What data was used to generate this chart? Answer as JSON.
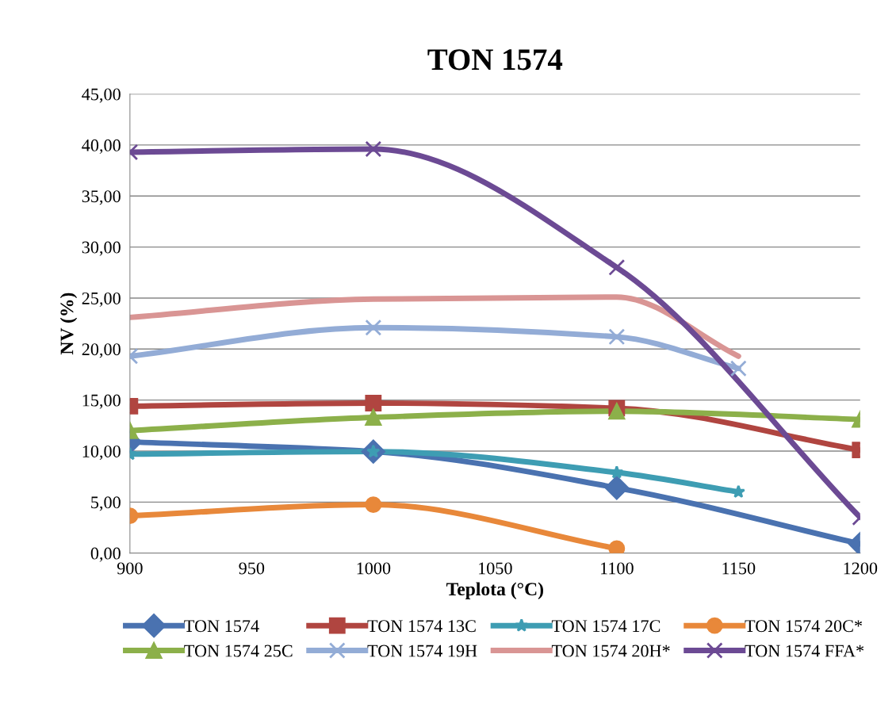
{
  "chart_data": {
    "type": "line",
    "title": "TON 1574",
    "xlabel": "Teplota (°C)",
    "ylabel": "NV (%)",
    "xlim": [
      900,
      1200
    ],
    "xticks": [
      900,
      950,
      1000,
      1050,
      1100,
      1150,
      1200
    ],
    "ylim": [
      0,
      45
    ],
    "yticks": [
      {
        "value": 0,
        "label": "0,00"
      },
      {
        "value": 5,
        "label": "5,00"
      },
      {
        "value": 10,
        "label": "10,00"
      },
      {
        "value": 15,
        "label": "15,00"
      },
      {
        "value": 20,
        "label": "20,00"
      },
      {
        "value": 25,
        "label": "25,00"
      },
      {
        "value": 30,
        "label": "30,00"
      },
      {
        "value": 35,
        "label": "35,00"
      },
      {
        "value": 40,
        "label": "40,00"
      },
      {
        "value": 45,
        "label": "45,00"
      }
    ],
    "grid": "y",
    "legend": "bottom",
    "line_style": "solid",
    "series": [
      {
        "name": "TON 1574",
        "color": "#4a72b0",
        "marker": "diamond",
        "x": [
          900,
          1000,
          1100,
          1200
        ],
        "values": [
          10.9,
          9.95,
          6.4,
          0.9
        ]
      },
      {
        "name": "TON 1574 13C",
        "color": "#b04540",
        "marker": "square",
        "x": [
          900,
          1000,
          1100,
          1200
        ],
        "values": [
          14.4,
          14.7,
          14.2,
          10.1
        ]
      },
      {
        "name": "TON 1574 17C",
        "color": "#3e9db3",
        "marker": "star",
        "x": [
          900,
          1000,
          1100,
          1150
        ],
        "values": [
          9.7,
          9.95,
          7.9,
          6.0
        ]
      },
      {
        "name": "TON 1574 20C*",
        "color": "#e8883a",
        "marker": "circle",
        "x": [
          900,
          1000,
          1100
        ],
        "values": [
          3.65,
          4.75,
          0.45
        ]
      },
      {
        "name": "TON 1574 25C",
        "color": "#8cb04a",
        "marker": "triangle",
        "x": [
          900,
          1000,
          1100,
          1200
        ],
        "values": [
          12.0,
          13.3,
          13.9,
          13.1
        ]
      },
      {
        "name": "TON 1574 19H",
        "color": "#93acd6",
        "marker": "cross",
        "x": [
          900,
          1000,
          1100,
          1150
        ],
        "values": [
          19.3,
          22.1,
          21.2,
          18.1
        ]
      },
      {
        "name": "TON 1574 20H*",
        "color": "#d99594",
        "marker": "none",
        "x": [
          900,
          1000,
          1100,
          1150
        ],
        "values": [
          23.1,
          24.9,
          25.1,
          19.3
        ]
      },
      {
        "name": "TON 1574 FFA*",
        "color": "#6c4a94",
        "marker": "cross",
        "x": [
          900,
          1000,
          1100,
          1200
        ],
        "values": [
          39.3,
          39.6,
          28.0,
          3.5
        ]
      }
    ]
  }
}
